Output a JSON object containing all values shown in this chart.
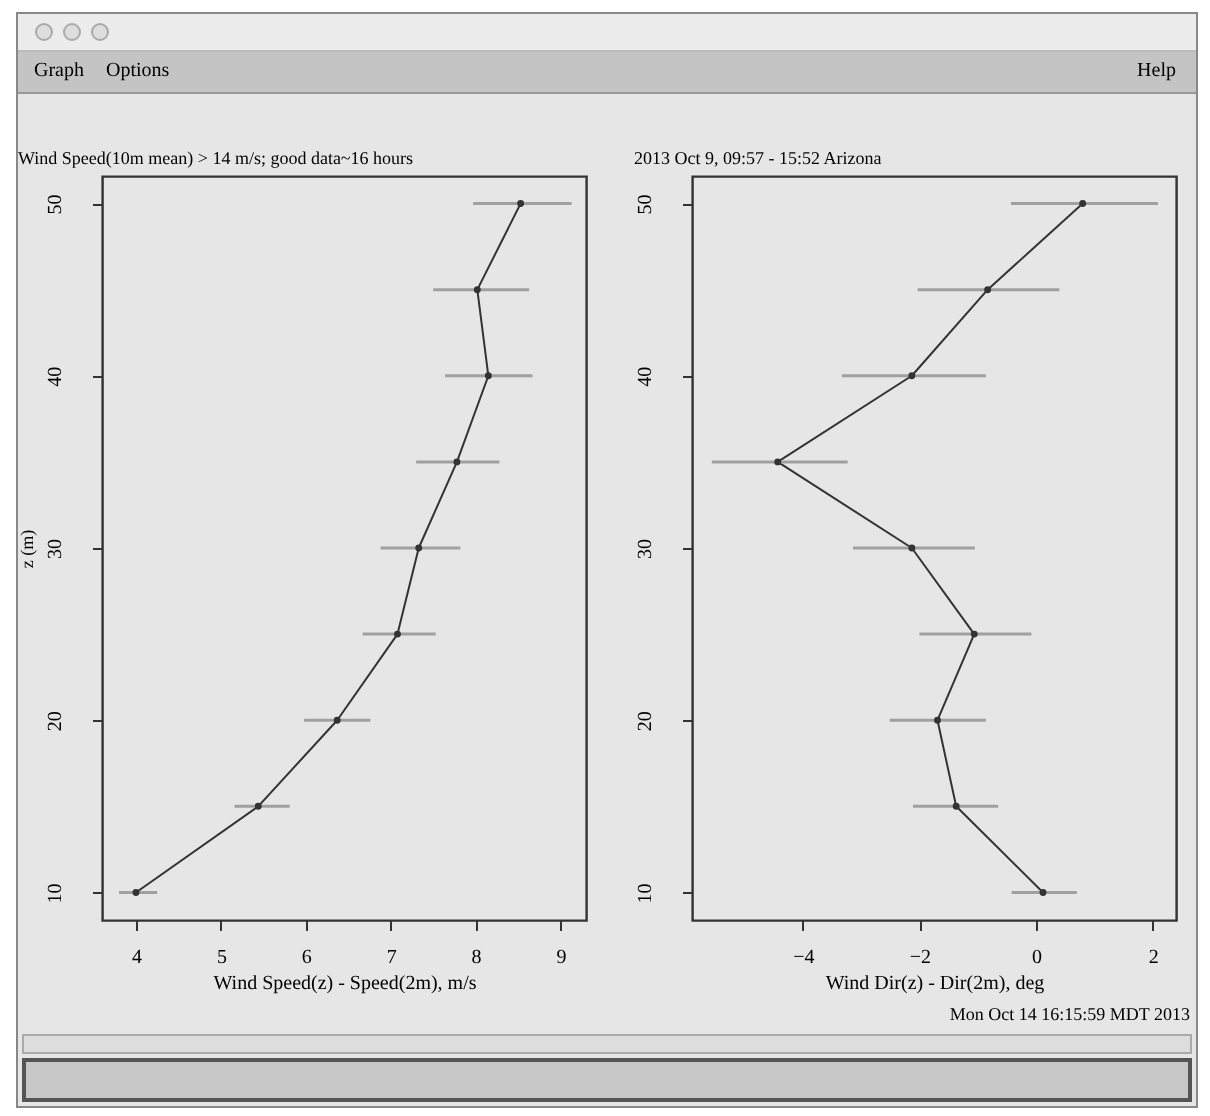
{
  "chart_data": [
    {
      "type": "line",
      "title": "Wind Speed(10m mean) > 14 m/s; good data~16 hours",
      "xlabel": "Wind Speed(z) - Speed(2m), m/s",
      "ylabel": "z (m)",
      "annotations": [
        "Graph",
        "Options",
        "Help"
      ],
      "series": [
        {
          "color": "#333333",
          "x": [
            4.0,
            5.44,
            6.37,
            7.08,
            7.33,
            7.78,
            8.15,
            8.02,
            8.53
          ],
          "values": [
            10,
            15,
            20,
            25,
            30,
            35,
            40,
            45,
            50
          ],
          "xerrors": [
            [
              3.8,
              4.25
            ],
            [
              5.16,
              5.81
            ],
            [
              5.98,
              6.76
            ],
            [
              6.67,
              7.53
            ],
            [
              6.88,
              7.82
            ],
            [
              7.3,
              8.28
            ],
            [
              7.64,
              8.67
            ],
            [
              7.5,
              8.63
            ],
            [
              7.97,
              9.13
            ]
          ]
        }
      ],
      "xlim": [
        3.6,
        9.3
      ],
      "xticks": [
        4,
        5,
        6,
        7,
        8,
        9
      ],
      "ylim": [
        8.4,
        51.6
      ],
      "yticks": [
        10,
        20,
        30,
        40,
        50
      ],
      "marker": "circle",
      "line_style": "solid"
    },
    {
      "type": "line",
      "title": "2013 Oct 9, 09:57 - 15:52  Arizona",
      "xlabel": "Wind Dir(z) - Dir(2m), deg",
      "annotations": [
        "Mon Oct 14 16:15:59 MDT 2013"
      ],
      "series": [
        {
          "color": "#333333",
          "x": [
            0.12,
            -1.37,
            -1.69,
            -1.06,
            -2.13,
            -4.43,
            -2.13,
            -0.83,
            0.8
          ],
          "values": [
            10,
            15,
            20,
            25,
            30,
            35,
            40,
            45,
            50
          ],
          "xerrors": [
            [
              -0.42,
              0.7
            ],
            [
              -2.11,
              -0.65
            ],
            [
              -2.51,
              -0.86
            ],
            [
              -2.0,
              -0.08
            ],
            [
              -3.14,
              -1.05
            ],
            [
              -5.56,
              -3.23
            ],
            [
              -3.33,
              -0.86
            ],
            [
              -2.03,
              0.4
            ],
            [
              -0.43,
              2.09
            ]
          ]
        }
      ],
      "xlim": [
        -5.9,
        2.4
      ],
      "xticks": [
        -4,
        -2,
        0,
        2
      ],
      "ylim": [
        8.4,
        51.6
      ],
      "yticks": [
        10,
        20,
        30,
        40,
        50
      ],
      "marker": "circle",
      "line_style": "solid"
    }
  ]
}
